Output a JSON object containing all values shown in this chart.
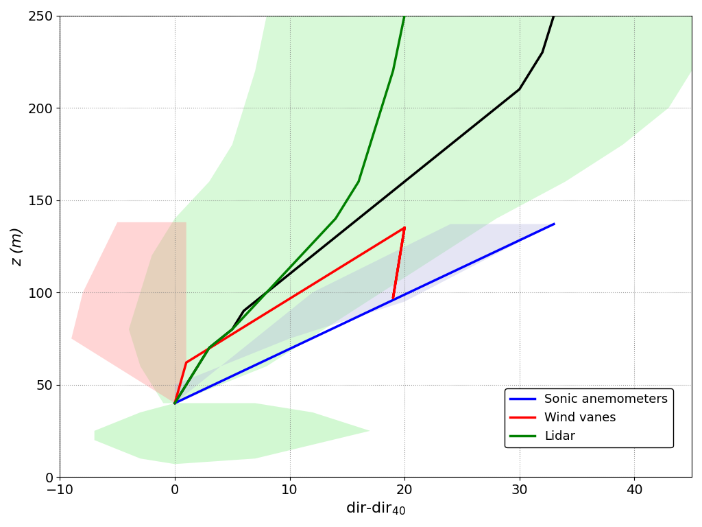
{
  "xlim": [
    -10,
    45
  ],
  "ylim": [
    0,
    250
  ],
  "xlabel": "dir-dir",
  "xlabel_sub": "40",
  "ylabel": "z (m)",
  "xticks": [
    -10,
    0,
    10,
    20,
    30,
    40
  ],
  "yticks": [
    0,
    50,
    100,
    150,
    200,
    250
  ],
  "figsize": [
    10.24,
    7.68
  ],
  "dpi": 100,
  "blue_line_x": [
    0,
    33
  ],
  "blue_line_y": [
    40,
    137
  ],
  "red_line_x": [
    0,
    1,
    20,
    19,
    20
  ],
  "red_line_y": [
    40,
    62,
    135,
    97,
    135
  ],
  "green_line_z": [
    40,
    50,
    60,
    70,
    80,
    100,
    120,
    140,
    160,
    180,
    200,
    220,
    250
  ],
  "green_line_x": [
    0,
    1,
    2,
    3,
    5,
    8,
    11,
    14,
    16,
    17,
    18,
    19,
    20
  ],
  "black_z": [
    40,
    50,
    60,
    70,
    80,
    90,
    100,
    110,
    120,
    130,
    140,
    150,
    160,
    170,
    180,
    190,
    200,
    210,
    220,
    230,
    240,
    250
  ],
  "black_x": [
    0,
    1,
    2,
    3,
    5,
    6,
    8,
    10,
    12,
    14,
    16,
    18,
    20,
    22,
    24,
    26,
    28,
    30,
    31,
    32,
    32.5,
    33
  ],
  "shade_green_large_z": [
    40,
    60,
    80,
    100,
    120,
    140,
    160,
    180,
    200,
    220,
    250,
    250,
    250,
    250,
    250,
    250
  ],
  "shade_green_large_xleft": [
    -1,
    -3,
    -4,
    -3,
    -2,
    0,
    3,
    5,
    6,
    7,
    8,
    8,
    8,
    8,
    8,
    8
  ],
  "shade_green_large_xright": [
    0,
    8,
    13,
    18,
    23,
    28,
    34,
    39,
    43,
    45,
    45,
    45,
    45,
    45,
    45,
    45
  ],
  "shade_green_large_color": "#90ee90",
  "shade_green_large_alpha": 0.35,
  "shade_green_small_x": [
    -7,
    -3,
    0,
    7,
    17,
    12,
    7,
    0,
    -3,
    -7
  ],
  "shade_green_small_y": [
    20,
    10,
    7,
    10,
    25,
    35,
    40,
    40,
    35,
    25
  ],
  "shade_green_small_color": "#90ee90",
  "shade_green_small_alpha": 0.4,
  "shade_red_x": [
    0,
    -9,
    -8,
    -5,
    0,
    1,
    1,
    1,
    0
  ],
  "shade_red_y": [
    40,
    75,
    100,
    138,
    138,
    138,
    100,
    62,
    40
  ],
  "shade_red_color": "#ff8888",
  "shade_red_alpha": 0.35,
  "shade_blue_x": [
    0,
    0,
    4,
    10,
    20,
    33,
    45,
    43,
    35,
    24,
    12,
    4,
    0
  ],
  "shade_blue_y": [
    40,
    50,
    60,
    75,
    95,
    137,
    137,
    137,
    137,
    137,
    100,
    60,
    40
  ],
  "shade_blue_color": "#aaaadd",
  "shade_blue_alpha": 0.3
}
